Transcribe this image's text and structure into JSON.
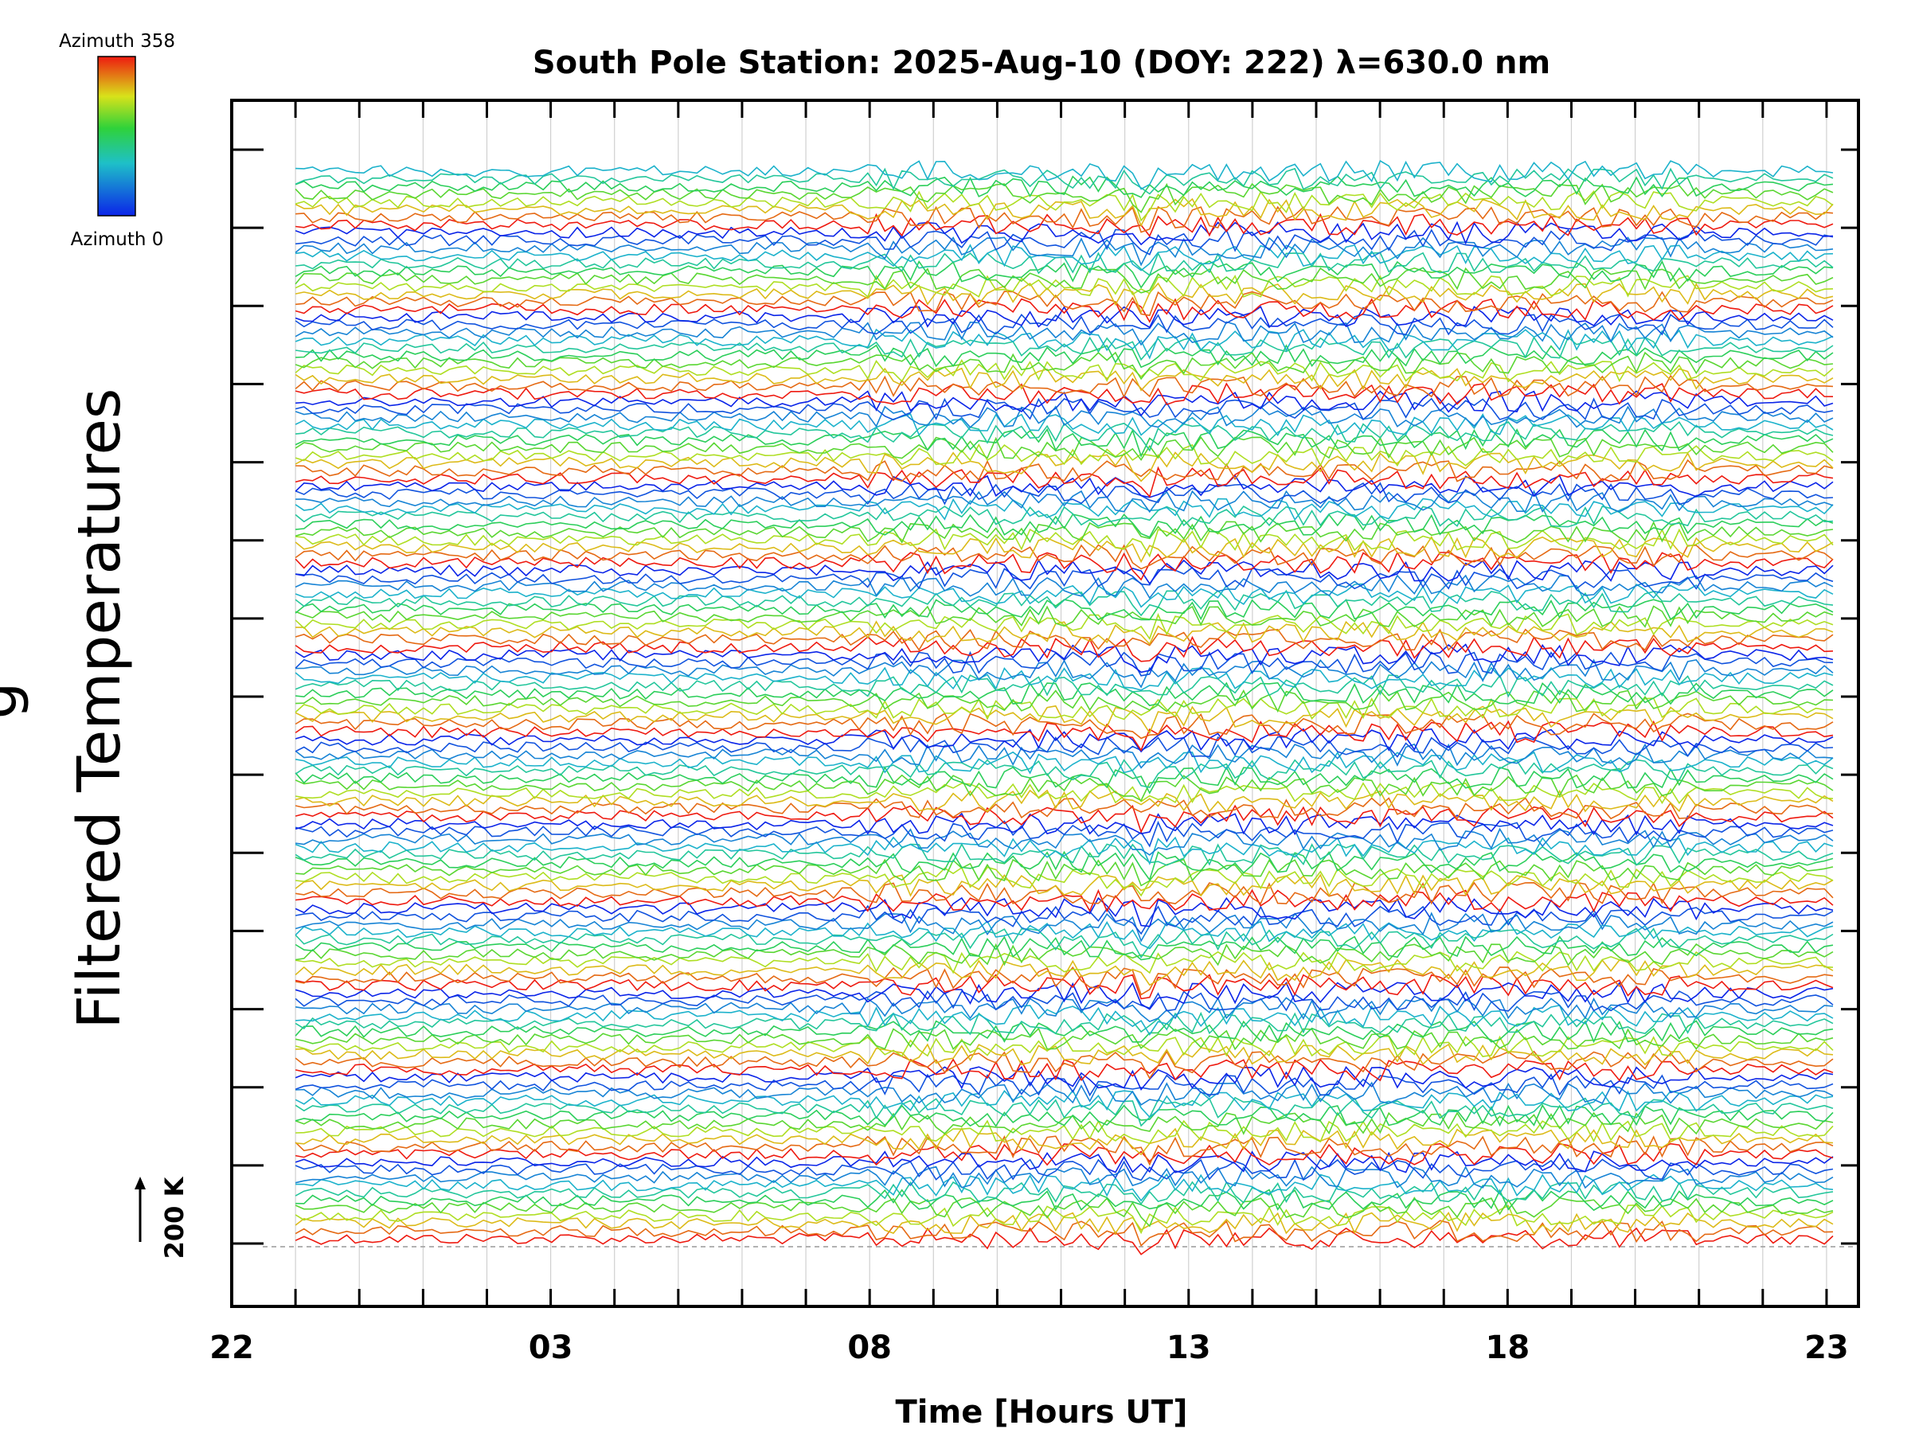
{
  "chart_data": {
    "type": "line",
    "title": "South Pole Station: 2025-Aug-10 (DOY: 222) λ=630.0 nm",
    "xlabel": "Time [Hours UT]",
    "ylabel": "Filtered Temperatures",
    "ylabel_partial": "g",
    "x_tick_labels": [
      "22",
      "03",
      "08",
      "13",
      "18",
      "23"
    ],
    "x_tick_values_hours": [
      22,
      27,
      32,
      37,
      42,
      47
    ],
    "xlim_hours": [
      22,
      47.5
    ],
    "data_xrange_hours": [
      23,
      47.1
    ],
    "series_count": 140,
    "stack_groups": 13,
    "series_per_group": 11,
    "scale_bar_label": "200 K",
    "legend": {
      "type": "colorbar",
      "top_label": "Azimuth  358",
      "bottom_label": "Azimuth  0",
      "azimuth_min": 0,
      "azimuth_max": 358,
      "colormap": "rainbow (blue=0 → red=358)"
    },
    "note": "Stacked per-azimuth filtered temperature traces; individual values not labeled."
  },
  "colors": {
    "axis": "#000000",
    "grid": "#d0d0d0",
    "baseline": "#999999",
    "cbar_bottom": "#0b24e8",
    "cbar_mid": "#2fd23a",
    "cbar_yellow": "#d8e21a",
    "cbar_top": "#ee1a10"
  }
}
